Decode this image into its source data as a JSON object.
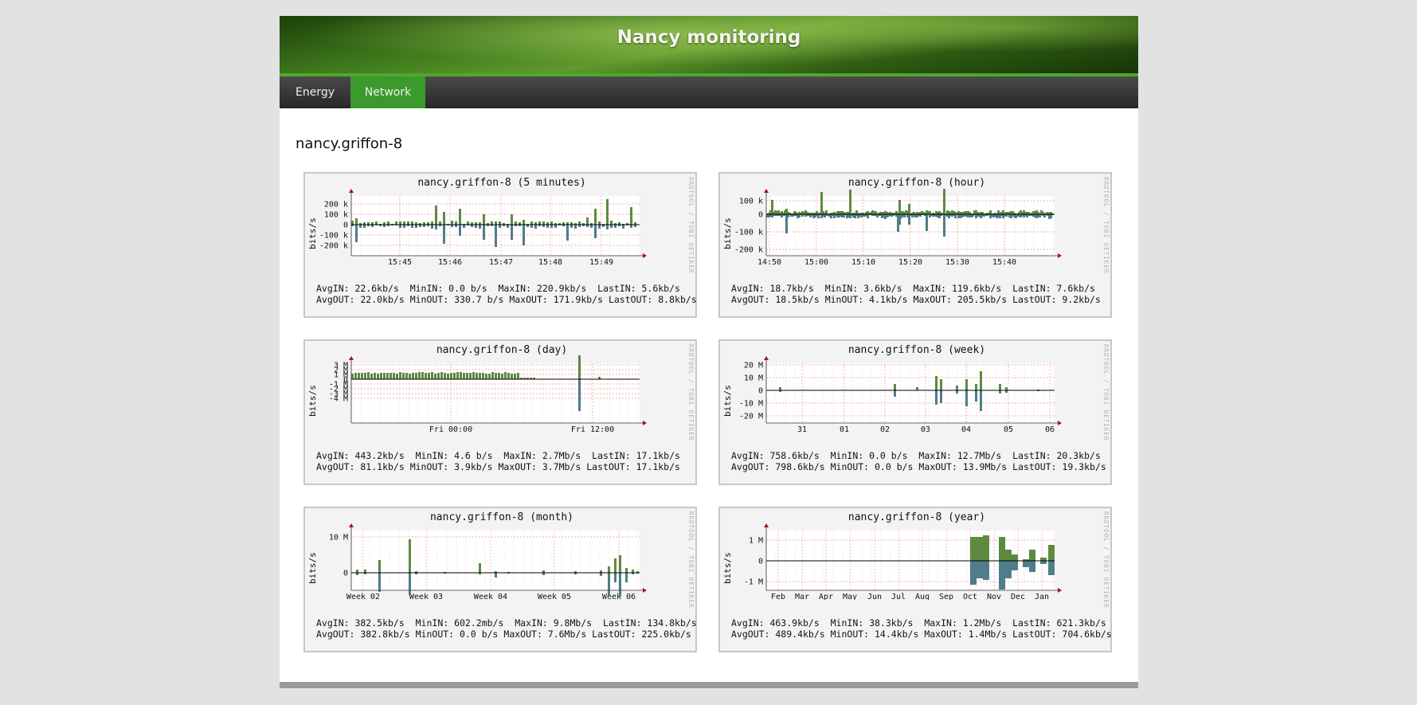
{
  "site": {
    "title": "Nancy monitoring"
  },
  "nav": {
    "tabs": [
      {
        "label": "Energy",
        "active": false
      },
      {
        "label": "Network",
        "active": true
      }
    ]
  },
  "host": "nancy.griffon-8",
  "colors": {
    "in": "#5e8a40",
    "out": "#4f7d8c",
    "active_tab": "#3b9a2c"
  },
  "graphs": [
    {
      "title": "nancy.griffon-8 (5 minutes)",
      "ylabel": "bits/s",
      "watermark": "RRDTOOL / TOBI OETIKER",
      "yticks": [
        "200 k",
        "100 k",
        "0",
        "-100 k",
        "-200 k"
      ],
      "xticks": [
        "15:45",
        "15:46",
        "15:47",
        "15:48",
        "15:49"
      ],
      "stats": {
        "AvgIN": "22.6kb/s",
        "MinIN": "0.0 b/s",
        "MaxIN": "220.9kb/s",
        "LastIN": "5.6kb/s",
        "AvgOUT": "22.0kb/s",
        "MinOUT": "330.7 b/s",
        "MaxOUT": "171.9kb/s",
        "LastOUT": "8.8kb/s"
      }
    },
    {
      "title": "nancy.griffon-8 (hour)",
      "ylabel": "bits/s",
      "watermark": "RRDTOOL / TOBI OETIKER",
      "yticks": [
        "100 k",
        "0",
        "-100 k",
        "-200 k"
      ],
      "xticks": [
        "14:50",
        "15:00",
        "15:10",
        "15:20",
        "15:30",
        "15:40"
      ],
      "stats": {
        "AvgIN": "18.7kb/s",
        "MinIN": "3.6kb/s",
        "MaxIN": "119.6kb/s",
        "LastIN": "7.6kb/s",
        "AvgOUT": "18.5kb/s",
        "MinOUT": "4.1kb/s",
        "MaxOUT": "205.5kb/s",
        "LastOUT": "9.2kb/s"
      }
    },
    {
      "title": "nancy.griffon-8 (day)",
      "ylabel": "bits/s",
      "watermark": "RRDTOOL / TOBI OETIKER",
      "yticks": [
        "3 M",
        "2 M",
        "1 M",
        "0",
        "-1 M",
        "-2 M",
        "-3 M",
        "-4 M"
      ],
      "xticks": [
        "Fri 00:00",
        "Fri 12:00"
      ],
      "stats": {
        "AvgIN": "443.2kb/s",
        "MinIN": "4.6 b/s",
        "MaxIN": "2.7Mb/s",
        "LastIN": "17.1kb/s",
        "AvgOUT": "81.1kb/s",
        "MinOUT": "3.9kb/s",
        "MaxOUT": "3.7Mb/s",
        "LastOUT": "17.1kb/s"
      }
    },
    {
      "title": "nancy.griffon-8 (week)",
      "ylabel": "bits/s",
      "watermark": "RRDTOOL / TOBI OETIKER",
      "yticks": [
        "20 M",
        "10 M",
        "0",
        "-10 M",
        "-20 M"
      ],
      "xticks": [
        "31",
        "01",
        "02",
        "03",
        "04",
        "05",
        "06"
      ],
      "stats": {
        "AvgIN": "758.6kb/s",
        "MinIN": "0.0 b/s",
        "MaxIN": "12.7Mb/s",
        "LastIN": "20.3kb/s",
        "AvgOUT": "798.6kb/s",
        "MinOUT": "0.0 b/s",
        "MaxOUT": "13.9Mb/s",
        "LastOUT": "19.3kb/s"
      }
    },
    {
      "title": "nancy.griffon-8 (month)",
      "ylabel": "bits/s",
      "watermark": "RRDTOOL / TOBI OETIKER",
      "yticks": [
        "10 M",
        "0"
      ],
      "xticks": [
        "Week 02",
        "Week 03",
        "Week 04",
        "Week 05",
        "Week 06"
      ],
      "stats": {
        "AvgIN": "382.5kb/s",
        "MinIN": "602.2mb/s",
        "MaxIN": "9.8Mb/s",
        "LastIN": "134.8kb/s",
        "AvgOUT": "382.8kb/s",
        "MinOUT": "0.0 b/s",
        "MaxOUT": "7.6Mb/s",
        "LastOUT": "225.0kb/s"
      }
    },
    {
      "title": "nancy.griffon-8 (year)",
      "ylabel": "bits/s",
      "watermark": "RRDTOOL / TOBI OETIKER",
      "yticks": [
        "1 M",
        "0",
        "-1 M"
      ],
      "xticks": [
        "Feb",
        "Mar",
        "Apr",
        "May",
        "Jun",
        "Jul",
        "Aug",
        "Sep",
        "Oct",
        "Nov",
        "Dec",
        "Jan"
      ],
      "stats": {
        "AvgIN": "463.9kb/s",
        "MinIN": "38.3kb/s",
        "MaxIN": "1.2Mb/s",
        "LastIN": "621.3kb/s",
        "AvgOUT": "489.4kb/s",
        "MinOUT": "14.4kb/s",
        "MaxOUT": "1.4Mb/s",
        "LastOUT": "704.6kb/s"
      }
    }
  ]
}
